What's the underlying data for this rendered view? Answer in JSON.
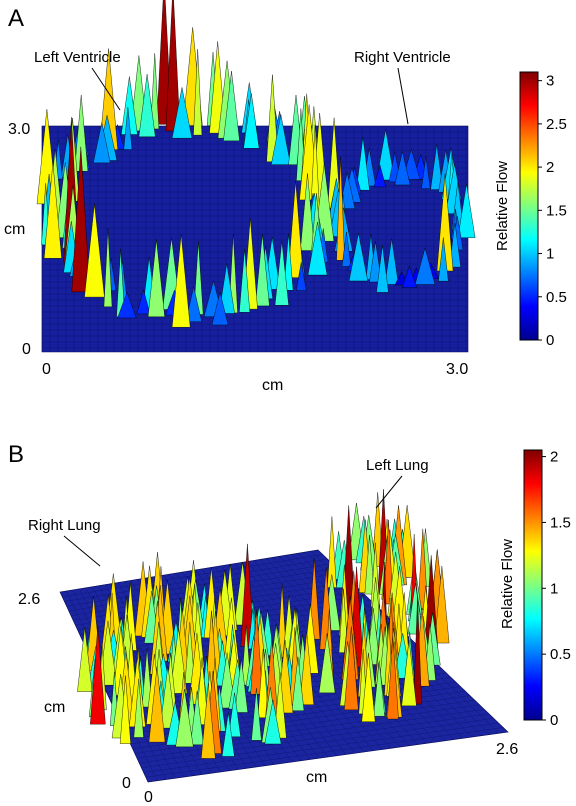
{
  "chart_data": [
    {
      "type": "surface",
      "panel_label": "A",
      "annotations": [
        "Left Ventricle",
        "Right Ventricle"
      ],
      "xlabel": "cm",
      "ylabel": "cm",
      "x_ticks": [
        "0",
        "3.0"
      ],
      "y_ticks": [
        "0",
        "3.0"
      ],
      "xlim": [
        0,
        3.0
      ],
      "ylim": [
        0,
        3.0
      ],
      "colorbar": {
        "label": "Relative Flow",
        "range": [
          0,
          3.1
        ],
        "ticks": [
          "0",
          "0.5",
          "1",
          "1.5",
          "2",
          "2.5",
          "3"
        ],
        "tick_values": [
          0,
          0.5,
          1,
          1.5,
          2,
          2.5,
          3
        ]
      },
      "colormap": "jet",
      "grid": false
    },
    {
      "type": "surface",
      "panel_label": "B",
      "annotations": [
        "Left Lung",
        "Right Lung"
      ],
      "xlabel": "cm",
      "ylabel": "cm",
      "x_ticks": [
        "0",
        "2.6"
      ],
      "y_ticks": [
        "0",
        "2.6"
      ],
      "xlim": [
        0,
        2.6
      ],
      "ylim": [
        0,
        2.6
      ],
      "colorbar": {
        "label": "Relative Flow",
        "range": [
          0,
          2.05
        ],
        "ticks": [
          "0",
          "0.5",
          "1",
          "1.5",
          "2"
        ],
        "tick_values": [
          0,
          0.5,
          1,
          1.5,
          2
        ]
      },
      "colormap": "jet",
      "grid": false
    }
  ]
}
